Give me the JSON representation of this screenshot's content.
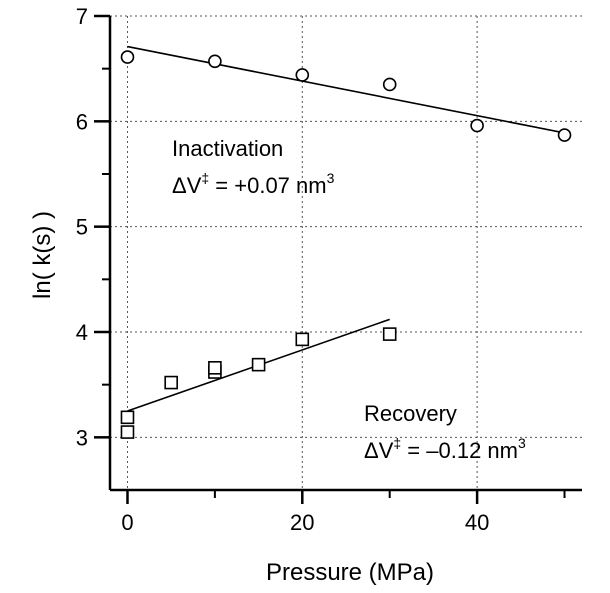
{
  "chart_data": {
    "type": "scatter",
    "xlabel": "Pressure (MPa)",
    "ylabel": "ln( k(s) )",
    "xlim": [
      -2,
      52
    ],
    "ylim": [
      2.5,
      7
    ],
    "x_ticks": [
      0,
      20,
      40
    ],
    "x_tick_labels": [
      "0",
      "20",
      "40"
    ],
    "y_ticks": [
      3,
      4,
      5,
      6,
      7
    ],
    "y_tick_labels": [
      "3",
      "4",
      "5",
      "6",
      "7"
    ],
    "grid": true,
    "series": [
      {
        "name": "Inactivation",
        "marker": "circle",
        "x": [
          0,
          10,
          20,
          30,
          40,
          50
        ],
        "y": [
          6.61,
          6.57,
          6.44,
          6.35,
          5.96,
          5.87
        ],
        "fit": {
          "x": [
            0,
            50
          ],
          "y": [
            6.71,
            5.89
          ]
        }
      },
      {
        "name": "Recovery",
        "marker": "square",
        "x": [
          0,
          0,
          5,
          10,
          10,
          15,
          20,
          30
        ],
        "y": [
          3.19,
          3.05,
          3.52,
          3.62,
          3.66,
          3.69,
          3.93,
          3.98
        ],
        "fit": {
          "x": [
            0,
            30
          ],
          "y": [
            3.25,
            4.12
          ]
        }
      }
    ],
    "annotations": [
      {
        "name": "Inactivation",
        "delta_v": "ΔV",
        "sup": "‡",
        "value": " = +0.07 nm",
        "unit_sup": "3"
      },
      {
        "name": "Recovery",
        "delta_v": "ΔV",
        "sup": "‡",
        "value": " = –0.12 nm",
        "unit_sup": "3"
      }
    ],
    "colors": {
      "ink": "#000000",
      "grid": "#555555",
      "background": "#ffffff"
    }
  }
}
